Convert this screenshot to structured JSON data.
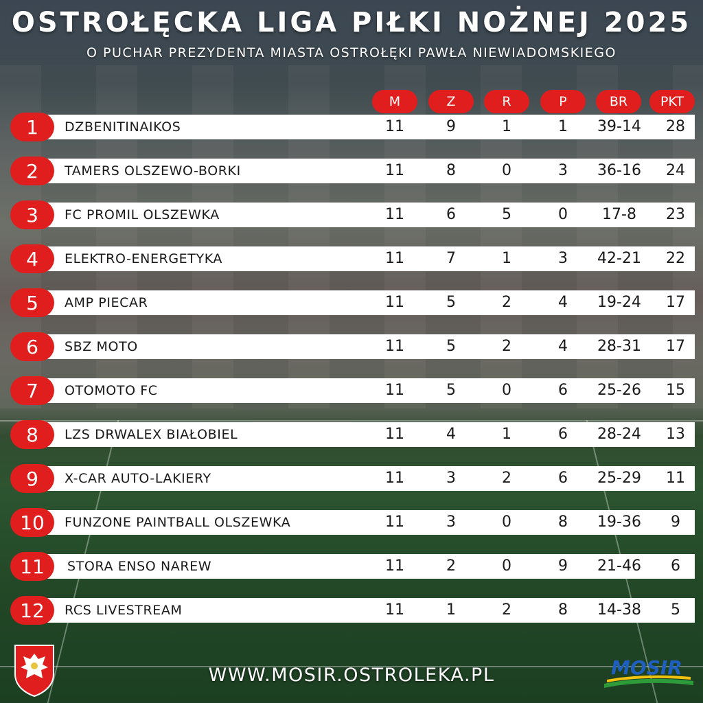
{
  "title": "OSTROŁĘCKA LIGA PIŁKI NOŻNEJ 2025",
  "subtitle": "O PUCHAR PREZYDENTA MIASTA OSTROŁĘKI PAWŁA NIEWIADOMSKIEGO",
  "columns": [
    "M",
    "Z",
    "R",
    "P",
    "BR",
    "PKT"
  ],
  "rows": [
    {
      "pos": "1",
      "team": "DZBENITINAIKOS",
      "m": "11",
      "z": "9",
      "r": "1",
      "p": "1",
      "br": "39-14",
      "pkt": "28"
    },
    {
      "pos": "2",
      "team": "TAMERS OLSZEWO-BORKI",
      "m": "11",
      "z": "8",
      "r": "0",
      "p": "3",
      "br": "36-16",
      "pkt": "24"
    },
    {
      "pos": "3",
      "team": "FC PROMIL OLSZEWKA",
      "m": "11",
      "z": "6",
      "r": "5",
      "p": "0",
      "br": "17-8",
      "pkt": "23"
    },
    {
      "pos": "4",
      "team": "ELEKTRO-ENERGETYKA",
      "m": "11",
      "z": "7",
      "r": "1",
      "p": "3",
      "br": "42-21",
      "pkt": "22"
    },
    {
      "pos": "5",
      "team": "AMP PIECAR",
      "m": "11",
      "z": "5",
      "r": "2",
      "p": "4",
      "br": "19-24",
      "pkt": "17"
    },
    {
      "pos": "6",
      "team": "SBZ MOTO",
      "m": "11",
      "z": "5",
      "r": "2",
      "p": "4",
      "br": "28-31",
      "pkt": "17"
    },
    {
      "pos": "7",
      "team": "OTOMOTO FC",
      "m": "11",
      "z": "5",
      "r": "0",
      "p": "6",
      "br": "25-26",
      "pkt": "15"
    },
    {
      "pos": "8",
      "team": "LZS DRWALEX BIAŁOBIEL",
      "m": "11",
      "z": "4",
      "r": "1",
      "p": "6",
      "br": "28-24",
      "pkt": "13"
    },
    {
      "pos": "9",
      "team": "X-CAR AUTO-LAKIERY",
      "m": "11",
      "z": "3",
      "r": "2",
      "p": "6",
      "br": "25-29",
      "pkt": "11"
    },
    {
      "pos": "10",
      "team": "FUNZONE PAINTBALL OLSZEWKA",
      "m": "11",
      "z": "3",
      "r": "0",
      "p": "8",
      "br": "19-36",
      "pkt": "9"
    },
    {
      "pos": "11",
      "team": "STORA ENSO NAREW",
      "m": "11",
      "z": "2",
      "r": "0",
      "p": "9",
      "br": "21-46",
      "pkt": "6"
    },
    {
      "pos": "12",
      "team": "RCS LIVESTREAM",
      "m": "11",
      "z": "1",
      "r": "2",
      "p": "8",
      "br": "14-38",
      "pkt": "5"
    }
  ],
  "footer_url": "WWW.MOSIR.OSTROLEKA.PL",
  "logos": {
    "crest": "city-coat-of-arms",
    "mosir": "MOSIR"
  },
  "colors": {
    "accent": "#e01e1e",
    "row_bg": "#ffffff",
    "text_dark": "#1a1a1a"
  }
}
